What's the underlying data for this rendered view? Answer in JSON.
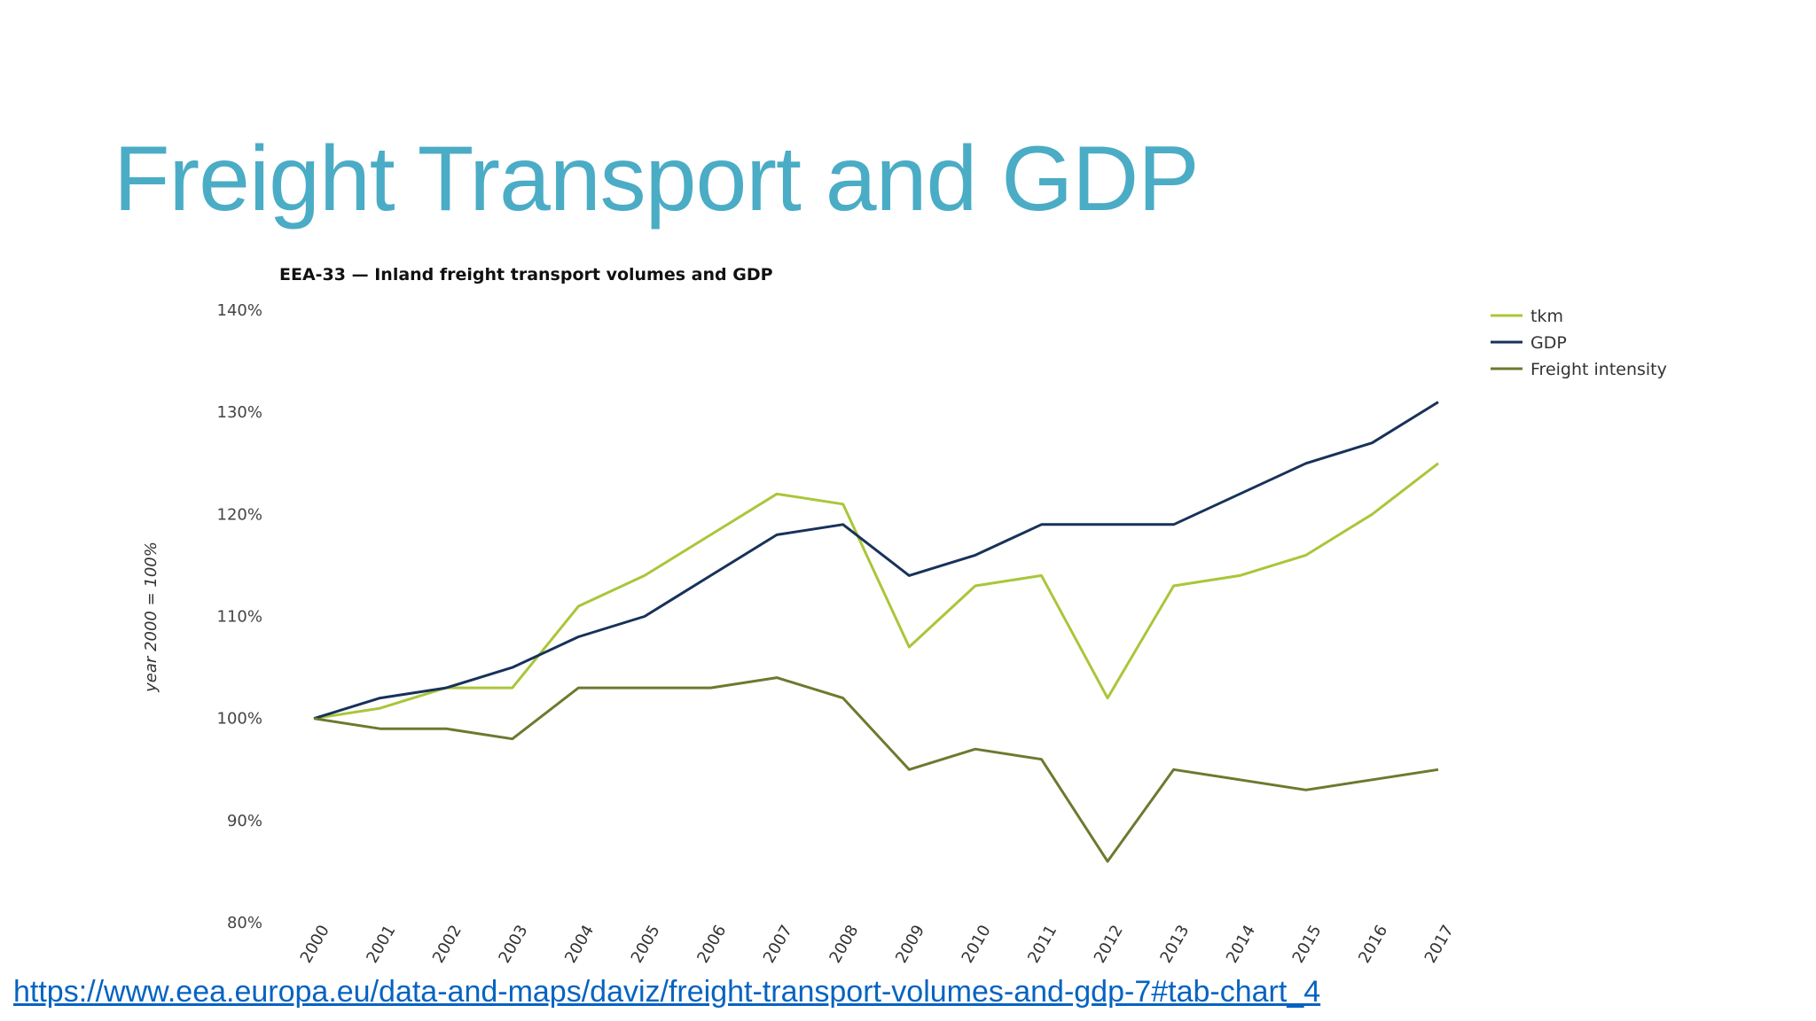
{
  "slide": {
    "title": "Freight Transport and GDP",
    "link": "https://www.eea.europa.eu/data-and-maps/daviz/freight-transport-volumes-and-gdp-7#tab-chart_4"
  },
  "chart_data": {
    "type": "line",
    "title": "EEA-33 — Inland freight transport volumes and GDP",
    "xlabel": "",
    "ylabel": "year 2000 = 100%",
    "x": [
      "2000",
      "2001",
      "2002",
      "2003",
      "2004",
      "2005",
      "2006",
      "2007",
      "2008",
      "2009",
      "2010",
      "2011",
      "2012",
      "2013",
      "2014",
      "2015",
      "2016",
      "2017"
    ],
    "ylim": [
      80,
      140
    ],
    "yticks": [
      "80%",
      "90%",
      "100%",
      "110%",
      "120%",
      "130%",
      "140%"
    ],
    "grid": false,
    "legend_position": "top-right",
    "series": [
      {
        "name": "tkm",
        "color": "#a9c639",
        "values": [
          100,
          101,
          103,
          103,
          111,
          114,
          118,
          122,
          121,
          107,
          113,
          114,
          102,
          113,
          114,
          116,
          120,
          125
        ]
      },
      {
        "name": "GDP",
        "color": "#17325a",
        "values": [
          100,
          102,
          103,
          105,
          108,
          110,
          114,
          118,
          119,
          114,
          116,
          119,
          119,
          119,
          122,
          125,
          127,
          131
        ]
      },
      {
        "name": "Freight intensity",
        "color": "#6b7a2e",
        "values": [
          100,
          99,
          99,
          98,
          103,
          103,
          103,
          104,
          102,
          95,
          97,
          96,
          86,
          95,
          94,
          93,
          94,
          95
        ]
      }
    ]
  }
}
